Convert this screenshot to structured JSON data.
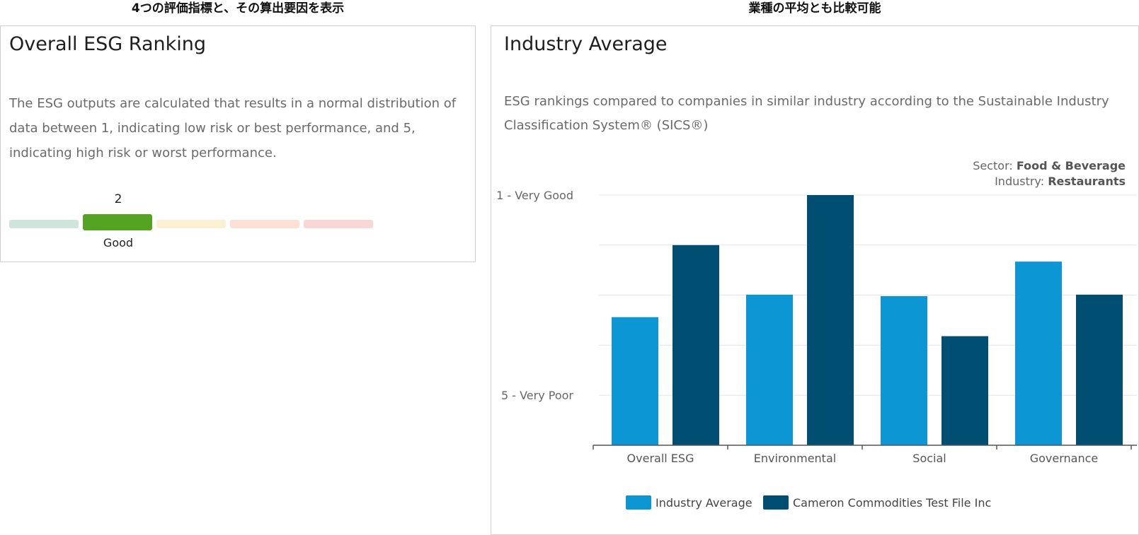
{
  "captions": {
    "left": "4つの評価指標と、その算出要因を表示",
    "right": "業種の平均とも比較可能"
  },
  "ranking_card": {
    "title": "Overall ESG Ranking",
    "description": "The ESG outputs are calculated that results in a normal distribution of data between 1, indicating low risk or best performance, and 5, indicating high risk or worst performance.",
    "rank_value": "2",
    "rank_label": "Good",
    "scale_colors": [
      "#cfe4db",
      "#55a322",
      "#fbf1d2",
      "#fde0d4",
      "#f8d7d6"
    ],
    "active_index": 1
  },
  "industry_card": {
    "title": "Industry Average",
    "description": "ESG rankings compared to companies in similar industry according to the Sustainable Industry Classification System® (SICS®)",
    "sector_label": "Sector:",
    "sector_value": "Food & Beverage",
    "industry_label": "Industry:",
    "industry_value": "Restaurants"
  },
  "chart_data": {
    "type": "bar",
    "categories": [
      "Overall ESG",
      "Environmental",
      "Social",
      "Governance"
    ],
    "series": [
      {
        "name": "Industry Average",
        "color": "#0c96d3",
        "values": [
          3.44,
          2.99,
          3.02,
          2.33
        ]
      },
      {
        "name": "Cameron Commodities Test File Inc",
        "color": "#004f72",
        "values": [
          2.0,
          1.0,
          3.82,
          2.99
        ]
      }
    ],
    "yticks": [
      {
        "value": 1,
        "label": "1 - Very Good"
      },
      {
        "value": 5,
        "label": "5 - Very Poor"
      }
    ],
    "ylim": [
      1,
      6
    ],
    "gridlines": [
      1,
      2,
      3,
      4,
      5
    ]
  }
}
